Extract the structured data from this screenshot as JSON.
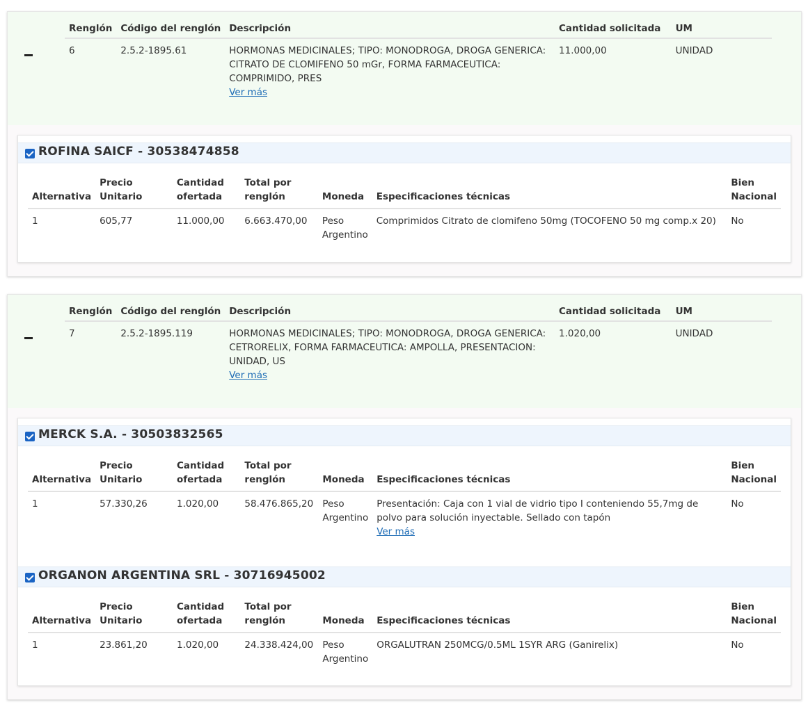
{
  "line_headers": [
    "Renglón",
    "Código del renglón",
    "Descripción",
    "Cantidad solicitada",
    "UM"
  ],
  "offer_headers": [
    "Alternativa",
    "Precio Unitario",
    "Cantidad ofertada",
    "Total por renglón",
    "Moneda",
    "Especificaciones técnicas",
    "Bien Nacional"
  ],
  "ver_mas": "Ver más",
  "lines": [
    {
      "renglon": "6",
      "codigo": "2.5.2-1895.61",
      "descripcion": "HORMONAS MEDICINALES; TIPO: MONODROGA, DROGA GENERICA: CITRATO DE CLOMIFENO 50 mGr, FORMA FARMACEUTICA: COMPRIMIDO, PRES",
      "cantidad": "11.000,00",
      "um": "UNIDAD",
      "offers": [
        {
          "supplier": "ROFINA SAICF - 30538474858",
          "alternativa": "1",
          "precio": "605,77",
          "cantidad": "11.000,00",
          "total": "6.663.470,00",
          "moneda": "Peso Argentino",
          "especificaciones": "Comprimidos Citrato de clomifeno 50mg (TOCOFENO 50 mg comp.x 20)",
          "bien_nacional": "No"
        }
      ]
    },
    {
      "renglon": "7",
      "codigo": "2.5.2-1895.119",
      "descripcion": "HORMONAS MEDICINALES; TIPO: MONODROGA, DROGA GENERICA: CETRORELIX, FORMA FARMACEUTICA: AMPOLLA, PRESENTACION: UNIDAD, US",
      "cantidad": "1.020,00",
      "um": "UNIDAD",
      "offers": [
        {
          "supplier": "MERCK S.A. - 30503832565",
          "alternativa": "1",
          "precio": "57.330,26",
          "cantidad": "1.020,00",
          "total": "58.476.865,20",
          "moneda": "Peso Argentino",
          "especificaciones": "Presentación: Caja con 1 vial de vidrio tipo I conteniendo 55,7mg de polvo para solución inyectable. Sellado con tapón",
          "bien_nacional": "No"
        },
        {
          "supplier": "ORGANON ARGENTINA SRL - 30716945002",
          "alternativa": "1",
          "precio": "23.861,20",
          "cantidad": "1.020,00",
          "total": "24.338.424,00",
          "moneda": "Peso Argentino",
          "especificaciones": "ORGALUTRAN 250MCG/0.5ML 1SYR ARG (Ganirelix)",
          "bien_nacional": "No"
        }
      ]
    }
  ],
  "colors": {
    "line_header_bg": "#f3fbf2",
    "supplier_bar_bg": "#eef5fd",
    "checkbox": "#1a64c4",
    "link": "#1c6bb5",
    "panel_bg": "#fbf9fa"
  }
}
